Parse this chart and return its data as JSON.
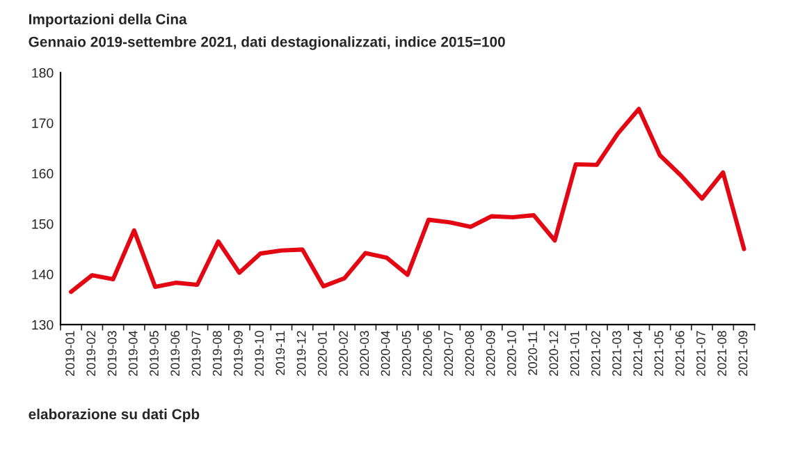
{
  "chart_data": {
    "type": "line",
    "title": "Importazioni della Cina",
    "subtitle": "Gennaio 2019-settembre 2021, dati destagionalizzati, indice 2015=100",
    "categories": [
      "2019-01",
      "2019-02",
      "2019-03",
      "2019-04",
      "2019-05",
      "2019-06",
      "2019-07",
      "2019-08",
      "2019-09",
      "2019-10",
      "2019-11",
      "2019-12",
      "2020-01",
      "2020-02",
      "2020-03",
      "2020-04",
      "2020-05",
      "2020-06",
      "2020-07",
      "2020-08",
      "2020-09",
      "2020-10",
      "2020-11",
      "2020-12",
      "2021-01",
      "2021-02",
      "2021-03",
      "2021-04",
      "2021-05",
      "2021-06",
      "2021-07",
      "2021-08",
      "2021-09"
    ],
    "series": [
      {
        "color": "#e30613",
        "values": [
          136.5,
          139.8,
          139,
          148.7,
          137.5,
          138.3,
          137.9,
          146.5,
          140.3,
          144.1,
          144.7,
          144.9,
          137.6,
          139.2,
          144.2,
          143.3,
          139.9,
          150.8,
          150.3,
          149.4,
          151.5,
          151.3,
          151.7,
          146.7,
          161.8,
          161.7,
          167.9,
          172.8,
          163.6,
          159.6,
          155,
          160.2,
          145
        ]
      }
    ],
    "ylim": [
      130,
      180
    ],
    "yticks": [
      130,
      140,
      150,
      160,
      170,
      180
    ],
    "grid": false,
    "marker": "none",
    "line_style": "solid",
    "annotations": [
      "elaborazione su dati Cpb"
    ]
  }
}
